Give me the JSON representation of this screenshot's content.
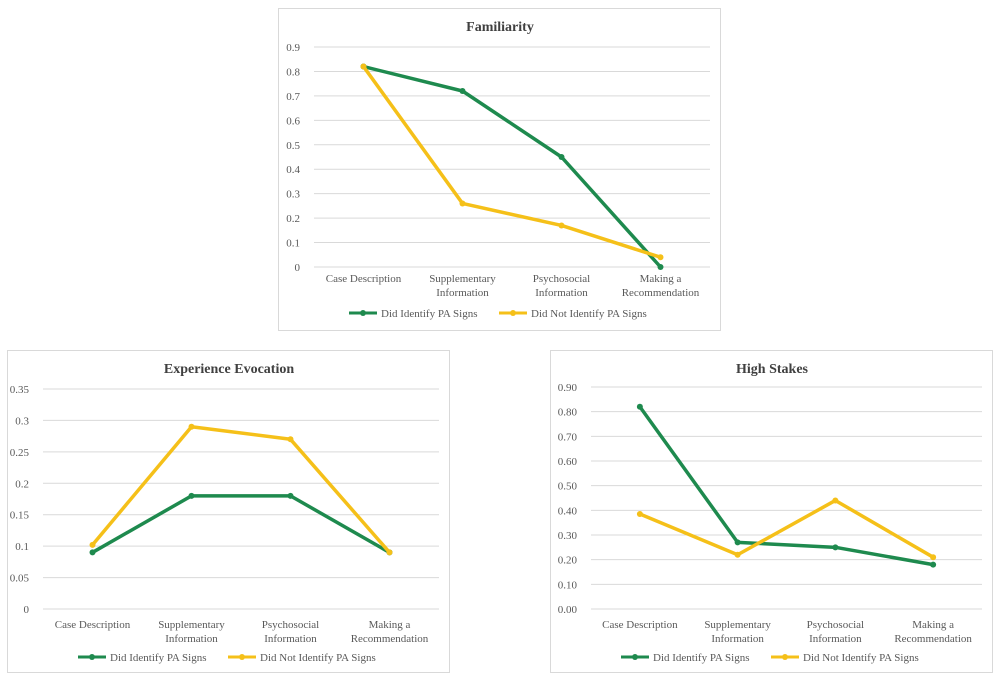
{
  "colors": {
    "identified": "#1e8a4e",
    "not_identified": "#f5c019"
  },
  "chart_data": [
    {
      "type": "line",
      "title": "Familiarity",
      "categories": [
        [
          "Case Description"
        ],
        [
          "Supplementary",
          "Information"
        ],
        [
          "Psychosocial",
          "Information"
        ],
        [
          "Making a",
          "Recommendation"
        ]
      ],
      "ylim": [
        0,
        0.9
      ],
      "yticks": [
        "0",
        "0.1",
        "0.2",
        "0.3",
        "0.4",
        "0.5",
        "0.6",
        "0.7",
        "0.8",
        "0.9"
      ],
      "grid": true,
      "legend": "bottom",
      "series": [
        {
          "name": "Did Identify PA Signs",
          "values": [
            0.82,
            0.72,
            0.45,
            0.0
          ]
        },
        {
          "name": "Did Not Identify PA Signs",
          "values": [
            0.82,
            0.26,
            0.17,
            0.04
          ]
        }
      ]
    },
    {
      "type": "line",
      "title": "Experience Evocation",
      "categories": [
        [
          "Case Description"
        ],
        [
          "Supplementary",
          "Information"
        ],
        [
          "Psychosocial",
          "Information"
        ],
        [
          "Making a",
          "Recommendation"
        ]
      ],
      "ylim": [
        0,
        0.35
      ],
      "yticks": [
        "0",
        "0.05",
        "0.1",
        "0.15",
        "0.2",
        "0.25",
        "0.3",
        "0.35"
      ],
      "grid": true,
      "legend": "bottom",
      "series": [
        {
          "name": "Did Identify PA Signs",
          "values": [
            0.09,
            0.18,
            0.18,
            0.09
          ]
        },
        {
          "name": "Did Not Identify PA Signs",
          "values": [
            0.102,
            0.29,
            0.27,
            0.09
          ]
        }
      ]
    },
    {
      "type": "line",
      "title": "High Stakes",
      "categories": [
        [
          "Case Description"
        ],
        [
          "Supplementary",
          "Information"
        ],
        [
          "Psychosocial",
          "Information"
        ],
        [
          "Making a",
          "Recommendation"
        ]
      ],
      "ylim": [
        0,
        0.9
      ],
      "yticks": [
        "0.00",
        "0.10",
        "0.20",
        "0.30",
        "0.40",
        "0.50",
        "0.60",
        "0.70",
        "0.80",
        "0.90"
      ],
      "grid": true,
      "legend": "bottom",
      "series": [
        {
          "name": "Did Identify PA Signs",
          "values": [
            0.82,
            0.27,
            0.25,
            0.18
          ]
        },
        {
          "name": "Did Not Identify PA Signs",
          "values": [
            0.385,
            0.22,
            0.44,
            0.21
          ]
        }
      ]
    }
  ]
}
